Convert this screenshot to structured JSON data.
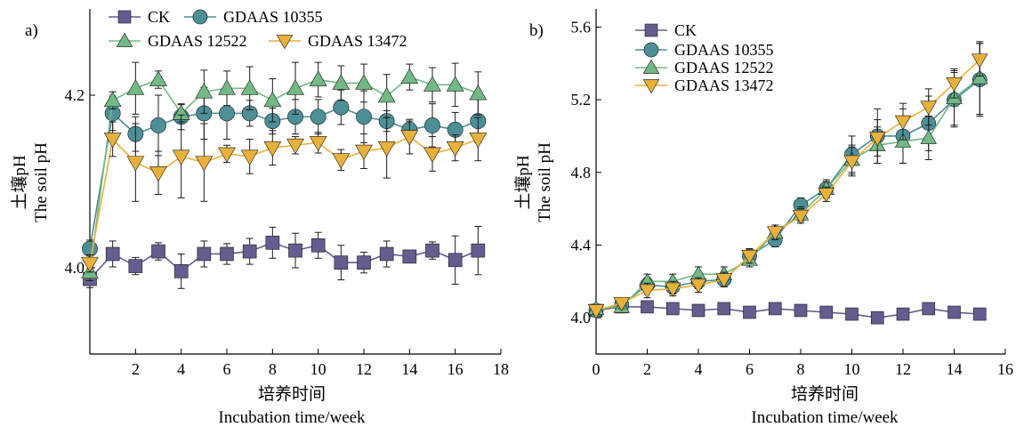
{
  "chart_data": [
    {
      "type": "line",
      "panel_label": "a)",
      "xlabel_zh": "培养时间",
      "xlabel_en": "Incubation time/week",
      "ylabel_zh": "土壤pH",
      "ylabel_en": "The soil pH",
      "xlim": [
        0,
        18
      ],
      "ylim": [
        3.9,
        4.3
      ],
      "xticks": [
        2,
        4,
        6,
        8,
        10,
        12,
        14,
        16,
        18
      ],
      "yticks": [
        4.0,
        4.2
      ],
      "x": [
        0,
        1,
        2,
        3,
        4,
        5,
        6,
        7,
        8,
        9,
        10,
        11,
        12,
        13,
        14,
        15,
        16,
        17
      ],
      "legend": {
        "placement": "top",
        "columns": 2
      },
      "series": [
        {
          "name": "CK",
          "marker": "square",
          "color": "#655c8f",
          "values": [
            3.987,
            4.016,
            4.002,
            4.019,
            3.996,
            4.016,
            4.016,
            4.019,
            4.029,
            4.02,
            4.026,
            4.006,
            4.006,
            4.016,
            4.013,
            4.02,
            4.009,
            4.02
          ],
          "errors": [
            0.01,
            0.015,
            0.01,
            0.01,
            0.02,
            0.015,
            0.012,
            0.015,
            0.018,
            0.02,
            0.015,
            0.02,
            0.012,
            0.015,
            0.005,
            0.01,
            0.028,
            0.028
          ]
        },
        {
          "name": "GDAAS 10355",
          "marker": "circle",
          "color": "#4c8f97",
          "values": [
            4.022,
            4.179,
            4.155,
            4.165,
            4.175,
            4.179,
            4.179,
            4.179,
            4.17,
            4.175,
            4.175,
            4.186,
            4.175,
            4.17,
            4.16,
            4.165,
            4.16,
            4.17
          ],
          "errors": [
            0.01,
            0.02,
            0.02,
            0.035,
            0.015,
            0.03,
            0.03,
            0.015,
            0.015,
            0.02,
            0.02,
            0.02,
            0.03,
            0.012,
            0.01,
            0.025,
            0.02,
            0.025
          ]
        },
        {
          "name": "GDAAS 12522",
          "marker": "triangle-up",
          "color": "#72b985",
          "values": [
            3.995,
            4.194,
            4.208,
            4.218,
            4.179,
            4.204,
            4.208,
            4.208,
            4.194,
            4.208,
            4.218,
            4.214,
            4.214,
            4.199,
            4.221,
            4.212,
            4.212,
            4.202
          ],
          "errors": [
            0.01,
            0.01,
            0.03,
            0.01,
            0.01,
            0.025,
            0.02,
            0.025,
            0.025,
            0.03,
            0.02,
            0.02,
            0.022,
            0.025,
            0.015,
            0.02,
            0.025,
            0.025
          ]
        },
        {
          "name": "GDAAS 13472",
          "marker": "triangle-down",
          "color": "#e8b13b",
          "values": [
            4.005,
            4.149,
            4.122,
            4.11,
            4.129,
            4.122,
            4.132,
            4.129,
            4.139,
            4.142,
            4.145,
            4.125,
            4.135,
            4.139,
            4.152,
            4.132,
            4.139,
            4.149
          ],
          "errors": [
            0.01,
            0.02,
            0.045,
            0.025,
            0.048,
            0.045,
            0.01,
            0.02,
            0.02,
            0.01,
            0.012,
            0.012,
            0.02,
            0.035,
            0.02,
            0.02,
            0.015,
            0.025
          ]
        }
      ]
    },
    {
      "type": "line",
      "panel_label": "b)",
      "xlabel_zh": "培养时间",
      "xlabel_en": "Incubation time/week",
      "ylabel_zh": "土壤pH",
      "ylabel_en": "The soil pH",
      "xlim": [
        0,
        16
      ],
      "ylim": [
        3.8,
        5.7
      ],
      "xticks": [
        0,
        2,
        4,
        6,
        8,
        10,
        12,
        14,
        16
      ],
      "yticks": [
        4.0,
        4.4,
        4.8,
        5.2,
        5.6
      ],
      "x": [
        0,
        1,
        2,
        3,
        4,
        5,
        6,
        7,
        8,
        9,
        10,
        11,
        12,
        13,
        14,
        15
      ],
      "legend": {
        "placement": "top-left",
        "columns": 1
      },
      "series": [
        {
          "name": "CK",
          "marker": "square",
          "color": "#655c8f",
          "values": [
            4.04,
            4.06,
            4.06,
            4.05,
            4.04,
            4.05,
            4.03,
            4.05,
            4.04,
            4.03,
            4.02,
            4.0,
            4.02,
            4.05,
            4.03,
            4.02
          ],
          "errors": [
            0.01,
            0.02,
            0.02,
            0.02,
            0.02,
            0.02,
            0.02,
            0.02,
            0.02,
            0.02,
            0.02,
            0.02,
            0.02,
            0.02,
            0.02,
            0.02
          ]
        },
        {
          "name": "GDAAS 10355",
          "marker": "circle",
          "color": "#4c8f97",
          "values": [
            4.04,
            4.07,
            4.18,
            4.17,
            4.2,
            4.21,
            4.34,
            4.43,
            4.62,
            4.71,
            4.9,
            5.0,
            5.0,
            5.07,
            5.2,
            5.31
          ],
          "errors": [
            0.02,
            0.03,
            0.04,
            0.04,
            0.04,
            0.04,
            0.04,
            0.04,
            0.04,
            0.05,
            0.1,
            0.15,
            0.15,
            0.15,
            0.15,
            0.2
          ]
        },
        {
          "name": "GDAAS 12522",
          "marker": "triangle-up",
          "color": "#72b985",
          "values": [
            4.05,
            4.06,
            4.2,
            4.2,
            4.24,
            4.24,
            4.32,
            4.47,
            4.57,
            4.71,
            4.87,
            4.95,
            4.97,
            4.99,
            5.21,
            5.32
          ],
          "errors": [
            0.02,
            0.03,
            0.04,
            0.04,
            0.04,
            0.04,
            0.04,
            0.04,
            0.04,
            0.04,
            0.08,
            0.1,
            0.12,
            0.12,
            0.15,
            0.2
          ]
        },
        {
          "name": "GDAAS 13472",
          "marker": "triangle-down",
          "color": "#e8b13b",
          "values": [
            4.04,
            4.08,
            4.15,
            4.16,
            4.18,
            4.21,
            4.34,
            4.47,
            4.56,
            4.68,
            4.86,
            4.99,
            5.08,
            5.16,
            5.29,
            5.42
          ],
          "errors": [
            0.02,
            0.03,
            0.04,
            0.04,
            0.04,
            0.04,
            0.04,
            0.04,
            0.04,
            0.04,
            0.08,
            0.1,
            0.1,
            0.1,
            0.08,
            0.09
          ]
        }
      ]
    }
  ]
}
